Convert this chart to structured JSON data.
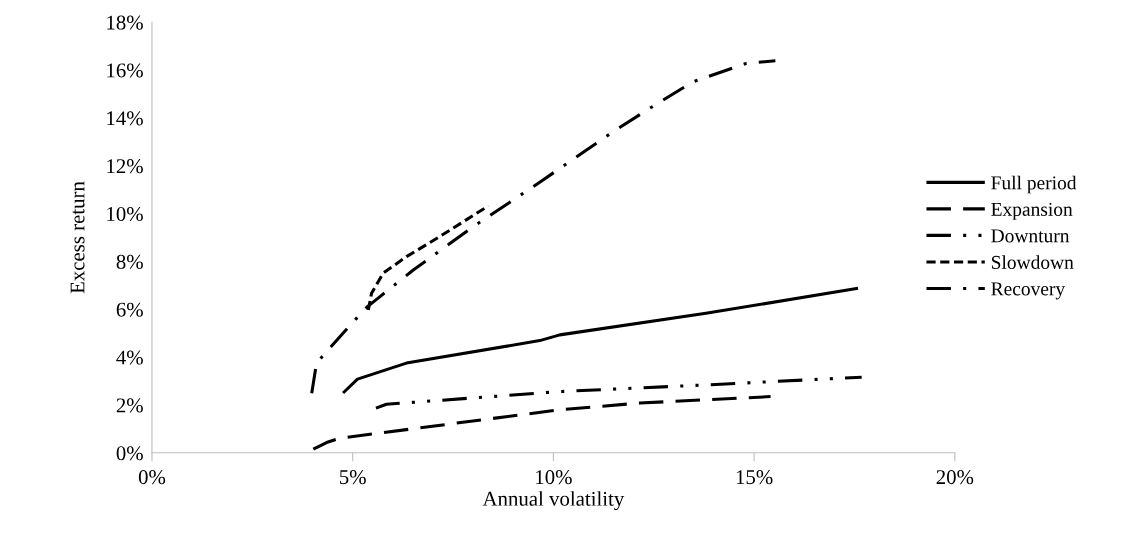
{
  "chart_data": {
    "type": "line",
    "xlabel": "Annual volatility",
    "ylabel": "Excess return",
    "xlim": [
      0,
      20
    ],
    "xticks": [
      {
        "value": 0,
        "label": "0%"
      },
      {
        "value": 5,
        "label": "5%"
      },
      {
        "value": 10,
        "label": "10%"
      },
      {
        "value": 15,
        "label": "15%"
      },
      {
        "value": 20,
        "label": "20%"
      }
    ],
    "ylim": [
      0,
      18
    ],
    "yticks": [
      {
        "value": 0,
        "label": "0%"
      },
      {
        "value": 2,
        "label": "2%"
      },
      {
        "value": 4,
        "label": "4%"
      },
      {
        "value": 6,
        "label": "6%"
      },
      {
        "value": 8,
        "label": "8%"
      },
      {
        "value": 10,
        "label": "10%"
      },
      {
        "value": 12,
        "label": "12%"
      },
      {
        "value": 14,
        "label": "14%"
      },
      {
        "value": 16,
        "label": "16%"
      },
      {
        "value": 18,
        "label": "18%"
      }
    ],
    "grid": false,
    "legend": "right",
    "marker": "none",
    "series": [
      {
        "name": "Full period",
        "color": "#000000",
        "line_style": "solid",
        "x": [
          4.76,
          5.12,
          6.34,
          9.66,
          10.16,
          13.8,
          17.59
        ],
        "values": [
          2.5,
          3.08,
          3.75,
          4.69,
          4.93,
          5.83,
          6.88
        ]
      },
      {
        "name": "Expansion",
        "color": "#000000",
        "line_style": "dashed",
        "x": [
          4.02,
          4.35,
          4.68,
          10.16,
          12.15,
          15.41
        ],
        "values": [
          0.15,
          0.43,
          0.61,
          1.8,
          2.08,
          2.35
        ]
      },
      {
        "name": "Downturn",
        "color": "#000000",
        "line_style": "dashdotdot",
        "x": [
          5.58,
          5.84,
          10.16,
          13.81,
          17.68
        ],
        "values": [
          1.87,
          2.03,
          2.56,
          2.84,
          3.16
        ]
      },
      {
        "name": "Slowdown",
        "color": "#000000",
        "line_style": "dotted",
        "x": [
          5.39,
          5.47,
          5.76,
          6.34,
          7.17,
          8.38
        ],
        "values": [
          5.97,
          6.67,
          7.51,
          8.2,
          9.04,
          10.32
        ]
      },
      {
        "name": "Recovery",
        "color": "#000000",
        "line_style": "dashdot",
        "x": [
          3.98,
          4.1,
          4.35,
          5.1,
          5.37,
          5.68,
          6.51,
          8.0,
          9.66,
          11.45,
          12.4,
          13.48,
          14.81,
          15.53
        ],
        "values": [
          2.49,
          3.75,
          4.23,
          5.63,
          6.11,
          6.53,
          7.64,
          9.45,
          11.31,
          13.38,
          14.4,
          15.51,
          16.28,
          16.39
        ]
      }
    ]
  }
}
